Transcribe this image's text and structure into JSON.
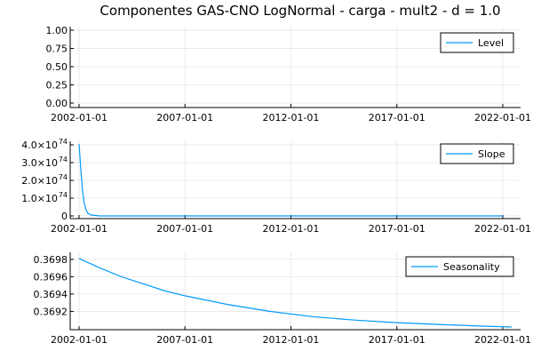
{
  "title": "Componentes GAS-CNO LogNormal - carga - mult2 - d = 1.0",
  "colors": {
    "series": "#009AFA",
    "grid": "#000000"
  },
  "chart_data": [
    {
      "type": "line",
      "id": "level",
      "legend": "Level",
      "legend_position": "top-right",
      "x_ticks": [
        "2002-01-01",
        "2007-01-01",
        "2012-01-01",
        "2017-01-01",
        "2022-01-01"
      ],
      "x_range": [
        "2002-01-01",
        "2022-01-01"
      ],
      "y_ticks": [
        "0.00",
        "0.25",
        "0.50",
        "0.75",
        "1.00"
      ],
      "ylim": [
        0,
        1
      ],
      "series": [
        {
          "name": "Level",
          "x": [],
          "values": []
        }
      ]
    },
    {
      "type": "line",
      "id": "slope",
      "legend": "Slope",
      "legend_position": "top-right",
      "x_ticks": [
        "2002-01-01",
        "2007-01-01",
        "2012-01-01",
        "2017-01-01",
        "2022-01-01"
      ],
      "x_range": [
        "2002-01-01",
        "2022-01-01"
      ],
      "y_ticks": [
        "0",
        "1.0×10",
        "2.0×10",
        "3.0×10",
        "4.0×10"
      ],
      "y_tick_exponent": "74",
      "ylim": [
        0,
        4e+74
      ],
      "series": [
        {
          "name": "Slope",
          "x": [
            "2002-01-01",
            "2002-02-01",
            "2002-03-01",
            "2002-04-01",
            "2002-05-01",
            "2002-06-01",
            "2002-08-01",
            "2003-01-01",
            "2022-01-01"
          ],
          "values": [
            4.05e+74,
            2.6e+74,
            1.4e+74,
            7e+73,
            3.5e+73,
            1.5e+73,
            5e+72,
            0.0,
            0.0
          ]
        }
      ]
    },
    {
      "type": "line",
      "id": "seasonality",
      "legend": "Seasonality",
      "legend_position": "top-right",
      "x_ticks": [
        "2002-01-01",
        "2007-01-01",
        "2012-01-01",
        "2017-01-01",
        "2022-01-01"
      ],
      "x_range": [
        "2002-01-01",
        "2022-01-01"
      ],
      "y_ticks": [
        "0.3692",
        "0.3694",
        "0.3696",
        "0.3698"
      ],
      "ylim": [
        0.36902,
        0.36984
      ],
      "series": [
        {
          "name": "Seasonality",
          "x": [
            "2002-01-01",
            "2003-01-01",
            "2004-01-01",
            "2005-01-01",
            "2006-01-01",
            "2007-01-01",
            "2009-01-01",
            "2011-01-01",
            "2013-01-01",
            "2015-01-01",
            "2017-01-01",
            "2019-01-01",
            "2021-01-01",
            "2022-06-01"
          ],
          "values": [
            0.36981,
            0.3697,
            0.3696,
            0.36952,
            0.36944,
            0.36938,
            0.36928,
            0.3692,
            0.36914,
            0.3691,
            0.36907,
            0.36905,
            0.36903,
            0.36902
          ]
        }
      ]
    }
  ]
}
